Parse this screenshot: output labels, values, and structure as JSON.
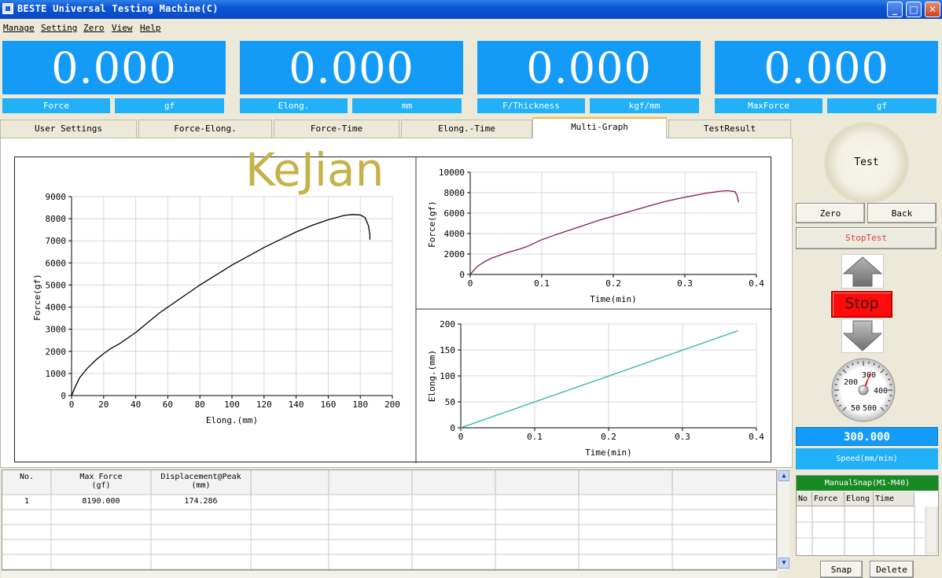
{
  "window": {
    "title": "BESTE Universal Testing Machine(C)",
    "minimize": "_",
    "maximize": "□",
    "close": "✕"
  },
  "menu": [
    "Manage",
    "Setting",
    "Zero",
    "View",
    "Help"
  ],
  "readouts": [
    {
      "value": "0.000",
      "label": "Force",
      "unit": "gf"
    },
    {
      "value": "0.000",
      "label": "Elong.",
      "unit": "mm"
    },
    {
      "value": "0.000",
      "label": "F/Thickness",
      "unit": "kgf/mm"
    },
    {
      "value": "0.000",
      "label": "MaxForce",
      "unit": "gf"
    }
  ],
  "tabs": [
    "User Settings",
    "Force-Elong.",
    "Force-Time",
    "Elong.-Time",
    "Multi-Graph",
    "TestResult"
  ],
  "active_tab": "Multi-Graph",
  "watermark": "KeJian",
  "chart_data": [
    {
      "type": "line",
      "xlabel": "Elong.(mm)",
      "ylabel": "Force(gf)",
      "xlim": [
        0,
        200
      ],
      "ylim": [
        0,
        9000
      ],
      "xticks": [
        0,
        20,
        40,
        60,
        80,
        100,
        120,
        140,
        160,
        180,
        200
      ],
      "yticks": [
        0,
        1000,
        2000,
        3000,
        4000,
        5000,
        6000,
        7000,
        8000,
        9000
      ],
      "grid": true,
      "color": "#000000",
      "series": [
        {
          "x": [
            0,
            2,
            5,
            10,
            15,
            20,
            25,
            30,
            35,
            40,
            45,
            50,
            55,
            60,
            70,
            80,
            90,
            100,
            110,
            120,
            130,
            140,
            150,
            160,
            170,
            175,
            180,
            183,
            185,
            186,
            186
          ],
          "y": [
            0,
            350,
            800,
            1250,
            1600,
            1900,
            2150,
            2350,
            2600,
            2850,
            3150,
            3450,
            3750,
            4000,
            4500,
            5000,
            5450,
            5900,
            6300,
            6700,
            7050,
            7400,
            7700,
            7950,
            8150,
            8190,
            8170,
            8050,
            7700,
            7300,
            7050
          ]
        }
      ]
    },
    {
      "type": "line",
      "xlabel": "Time(min)",
      "ylabel": "Force(gf)",
      "xlim": [
        0,
        0.4
      ],
      "ylim": [
        0,
        10000
      ],
      "xticks": [
        0,
        0.1,
        0.2,
        0.3,
        0.4
      ],
      "yticks": [
        0,
        2000,
        4000,
        6000,
        8000,
        10000
      ],
      "grid": true,
      "color": "#8a1c3c",
      "series": [
        {
          "x": [
            0,
            0.005,
            0.01,
            0.02,
            0.03,
            0.04,
            0.05,
            0.06,
            0.07,
            0.08,
            0.1,
            0.12,
            0.15,
            0.18,
            0.21,
            0.24,
            0.27,
            0.3,
            0.33,
            0.35,
            0.36,
            0.37,
            0.373,
            0.375
          ],
          "y": [
            0,
            400,
            800,
            1250,
            1600,
            1850,
            2100,
            2300,
            2500,
            2750,
            3400,
            3900,
            4600,
            5300,
            5900,
            6500,
            7100,
            7550,
            7950,
            8150,
            8190,
            8100,
            7700,
            7050
          ]
        }
      ]
    },
    {
      "type": "line",
      "xlabel": "Time(min)",
      "ylabel": "Elong.(mm)",
      "xlim": [
        0,
        0.4
      ],
      "ylim": [
        0,
        200
      ],
      "xticks": [
        0,
        0.1,
        0.2,
        0.3,
        0.4
      ],
      "yticks": [
        0,
        50,
        100,
        150,
        200
      ],
      "grid": true,
      "color": "#2bb98a",
      "series": [
        {
          "x": [
            0,
            0.375
          ],
          "y": [
            0,
            187
          ]
        }
      ]
    }
  ],
  "results_table": {
    "headers": [
      [
        "No.",
        ""
      ],
      [
        "Max Force",
        "(gf)"
      ],
      [
        "Displacement@Peak",
        "(mm)"
      ]
    ],
    "rows": [
      [
        "1",
        "8190.000",
        "174.286"
      ]
    ]
  },
  "controls": {
    "test": "Test",
    "zero": "Zero",
    "back": "Back",
    "stoptest": "StopTest",
    "stop": "Stop",
    "speed_value": "300.000",
    "speed_label": "Speed(mm/min)",
    "gauge_labels": [
      "200",
      "300",
      "400",
      "50",
      "500"
    ],
    "snap_title": "ManualSnap(M1-M40)",
    "snap_columns": [
      "No",
      "Force",
      "Elong",
      "Time"
    ],
    "snap": "Snap",
    "delete": "Delete"
  }
}
